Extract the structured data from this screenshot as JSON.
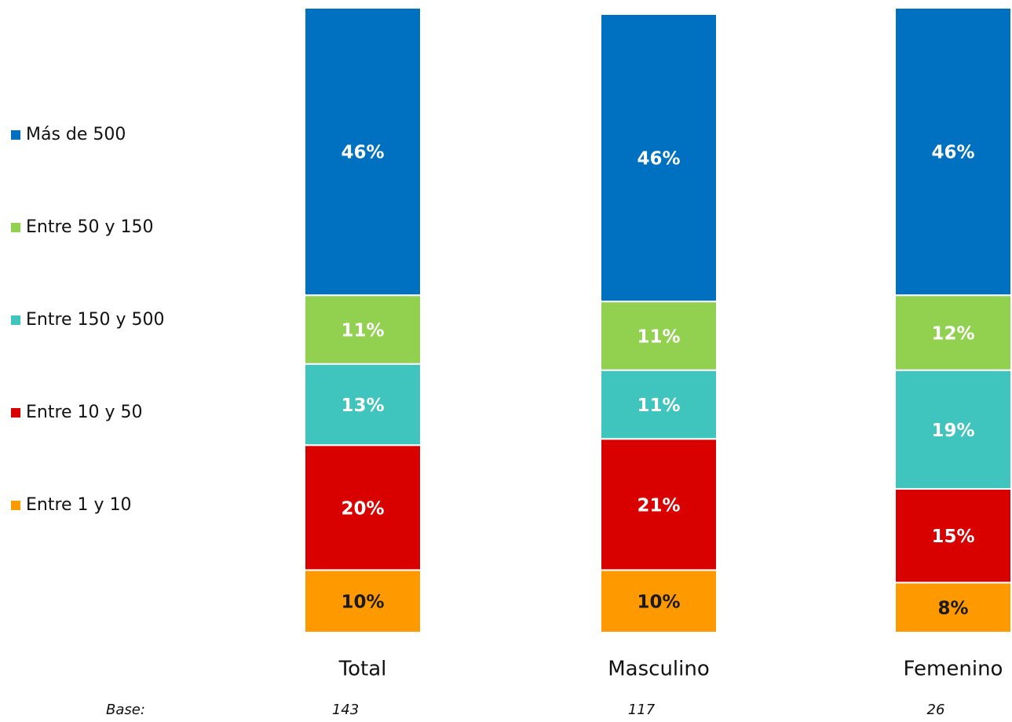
{
  "chart_data": {
    "type": "stacked_bar",
    "categories": [
      "Total",
      "Masculino",
      "Femenino"
    ],
    "series": [
      {
        "name": "Entre 1 y 10",
        "color": "#ff9900",
        "label_color": "#1a1a1a",
        "values": [
          10,
          10,
          8
        ],
        "value_labels": [
          "10%",
          "10%",
          "8%"
        ]
      },
      {
        "name": "Entre 10 y 50",
        "color": "#d90000",
        "label_color": "#ffffff",
        "values": [
          20,
          21,
          15
        ],
        "value_labels": [
          "20%",
          "21%",
          "15%"
        ]
      },
      {
        "name": "Entre 150 y 500",
        "color": "#40c4be",
        "label_color": "#ffffff",
        "values": [
          13,
          11,
          19
        ],
        "value_labels": [
          "13%",
          "11%",
          "19%"
        ]
      },
      {
        "name": "Entre 50 y 150",
        "color": "#92d050",
        "label_color": "#ffffff",
        "values": [
          11,
          11,
          12
        ],
        "value_labels": [
          "11%",
          "11%",
          "12%"
        ]
      },
      {
        "name": "Más de 500",
        "color": "#0070c0",
        "label_color": "#ffffff",
        "values": [
          46,
          46,
          46
        ],
        "value_labels": [
          "46%",
          "46%",
          "46%"
        ]
      }
    ],
    "ylim": [
      0,
      100
    ],
    "legend": "left",
    "base_label": "Base:",
    "base_values": [
      143,
      117,
      26
    ]
  }
}
